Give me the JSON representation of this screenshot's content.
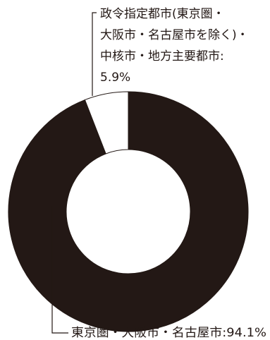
{
  "chart_data": {
    "type": "pie",
    "style": "donut",
    "series": [
      {
        "name": "東京圏・大阪市・名古屋市",
        "value": 94.1,
        "value_label": "94.1%",
        "color": "#231815",
        "label_lines": [
          "東京圏・大阪市・名古屋市:94.1%"
        ]
      },
      {
        "name": "政令指定都市(東京圏・大阪市・名古屋市を除く)・中核市・地方主要都市",
        "value": 5.9,
        "value_label": "5.9%",
        "color": "#ffffff",
        "label_lines": [
          "政令指定都市(東京圏・",
          "大阪市・名古屋市を除く)・",
          "中核市・地方主要都市:",
          "5.9%"
        ]
      }
    ]
  }
}
